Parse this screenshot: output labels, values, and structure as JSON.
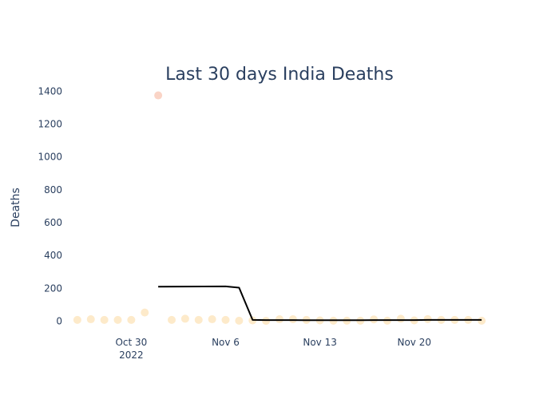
{
  "chart_data": {
    "type": "scatter",
    "title": "Last 30 days India Deaths",
    "xlabel": "",
    "ylabel": "Deaths",
    "xlim": [
      "2022-10-25",
      "2022-11-26"
    ],
    "ylim": [
      -85,
      1470
    ],
    "grid": false,
    "legend": "none",
    "y_ticks": [
      0,
      200,
      400,
      600,
      800,
      1000,
      1200,
      1400
    ],
    "x_ticks": [
      {
        "date": "2022-10-30",
        "label": "Oct 30",
        "sublabel": "2022"
      },
      {
        "date": "2022-11-06",
        "label": "Nov 6",
        "sublabel": ""
      },
      {
        "date": "2022-11-13",
        "label": "Nov 13",
        "sublabel": ""
      },
      {
        "date": "2022-11-20",
        "label": "Nov 20",
        "sublabel": ""
      }
    ],
    "series": [
      {
        "kind": "markers",
        "color": "#fde8c4",
        "highlight_color": "#f9cfc0",
        "x": [
          "2022-10-26",
          "2022-10-27",
          "2022-10-28",
          "2022-10-29",
          "2022-10-30",
          "2022-10-31",
          "2022-11-01",
          "2022-11-02",
          "2022-11-03",
          "2022-11-04",
          "2022-11-05",
          "2022-11-06",
          "2022-11-07",
          "2022-11-08",
          "2022-11-09",
          "2022-11-10",
          "2022-11-11",
          "2022-11-12",
          "2022-11-13",
          "2022-11-14",
          "2022-11-15",
          "2022-11-16",
          "2022-11-17",
          "2022-11-18",
          "2022-11-19",
          "2022-11-20",
          "2022-11-21",
          "2022-11-22",
          "2022-11-23",
          "2022-11-24",
          "2022-11-25"
        ],
        "y": [
          8,
          12,
          8,
          8,
          8,
          53,
          1375,
          8,
          15,
          8,
          12,
          8,
          3,
          5,
          2,
          12,
          12,
          8,
          5,
          3,
          3,
          3,
          11,
          3,
          15,
          5,
          13,
          8,
          8,
          8,
          3
        ],
        "highlight_index": 6
      },
      {
        "kind": "line",
        "color": "#000000",
        "x": [
          "2022-11-01",
          "2022-11-06",
          "2022-11-07",
          "2022-11-08",
          "2022-11-09",
          "2022-11-10",
          "2022-11-11",
          "2022-11-12",
          "2022-11-13",
          "2022-11-14",
          "2022-11-15",
          "2022-11-16",
          "2022-11-17",
          "2022-11-18",
          "2022-11-19",
          "2022-11-20",
          "2022-11-21",
          "2022-11-22",
          "2022-11-23",
          "2022-11-24",
          "2022-11-25"
        ],
        "y": [
          210,
          212,
          204,
          8,
          7,
          7,
          7,
          6,
          6,
          6,
          6,
          6,
          7,
          7,
          7,
          7,
          8,
          8,
          8,
          8,
          8
        ]
      }
    ]
  }
}
